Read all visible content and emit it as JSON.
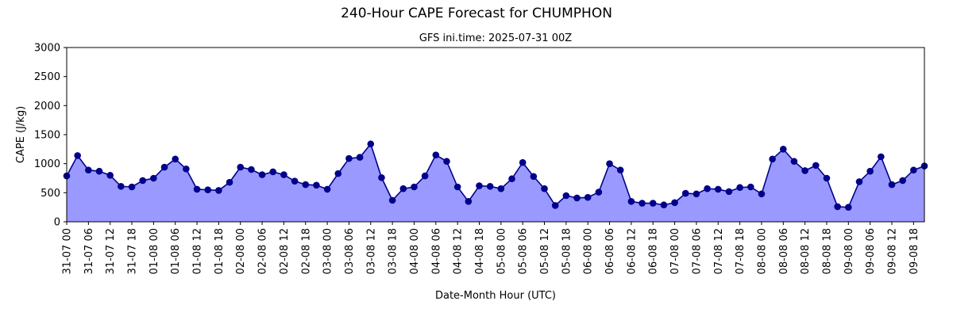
{
  "chart_data": {
    "type": "area",
    "title": "240-Hour CAPE Forecast for CHUMPHON",
    "subtitle": "GFS ini.time: 2025-07-31 00Z",
    "xlabel": "Date-Month Hour (UTC)",
    "ylabel": "CAPE (J/kg)",
    "ylim": [
      0,
      3000
    ],
    "yticks": [
      0,
      500,
      1000,
      1500,
      2000,
      2500,
      3000
    ],
    "x_step_hours": 3,
    "xlim_steps": [
      0,
      79
    ],
    "xtick_labels": [
      "31-07 00",
      "31-07 06",
      "31-07 12",
      "31-07 18",
      "01-08 00",
      "01-08 06",
      "01-08 12",
      "01-08 18",
      "02-08 00",
      "02-08 06",
      "02-08 12",
      "02-08 18",
      "03-08 00",
      "03-08 06",
      "03-08 12",
      "03-08 18",
      "04-08 00",
      "04-08 06",
      "04-08 12",
      "04-08 18",
      "05-08 00",
      "05-08 06",
      "05-08 12",
      "05-08 18",
      "06-08 00",
      "06-08 06",
      "06-08 12",
      "06-08 18",
      "07-08 00",
      "07-08 06",
      "07-08 12",
      "07-08 18",
      "08-08 00",
      "08-08 06",
      "08-08 12",
      "08-08 18",
      "09-08 00",
      "09-08 06",
      "09-08 12",
      "09-08 18"
    ],
    "grid": false,
    "line_color": "#00008b",
    "fill_color": "#9999ff",
    "values": [
      790,
      1140,
      890,
      870,
      800,
      610,
      600,
      710,
      750,
      940,
      1080,
      910,
      560,
      550,
      540,
      680,
      940,
      900,
      810,
      860,
      810,
      700,
      640,
      630,
      560,
      830,
      1090,
      1110,
      1340,
      760,
      370,
      570,
      600,
      790,
      1150,
      1040,
      600,
      350,
      620,
      610,
      570,
      740,
      1020,
      780,
      570,
      280,
      450,
      410,
      420,
      510,
      1000,
      890,
      350,
      320,
      320,
      290,
      330,
      490,
      480,
      570,
      560,
      520,
      590,
      600,
      480,
      1080,
      1250,
      1040,
      880,
      970,
      750,
      260,
      250,
      690,
      870,
      1120,
      640,
      710,
      890,
      960
    ]
  }
}
